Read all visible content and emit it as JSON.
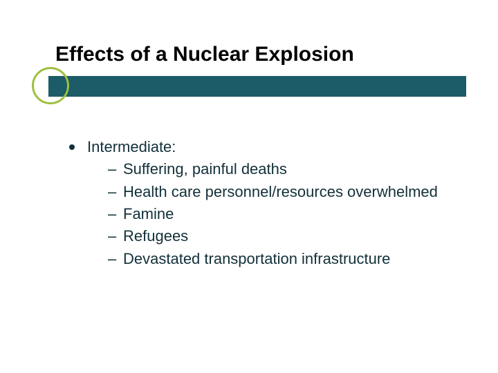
{
  "slide": {
    "title": "Effects of a Nuclear Explosion",
    "title_fontsize": 30,
    "title_color": "#000000",
    "underline_bar_color": "#1c5c68",
    "ring_border_color": "#9fbf3f",
    "body_text_color": "#12303a",
    "body_fontsize": 22,
    "background_color": "#ffffff",
    "bullet": {
      "label": "Intermediate:"
    },
    "subitems": [
      "Suffering, painful deaths",
      "Health care personnel/resources overwhelmed",
      "Famine",
      "Refugees",
      "Devastated transportation infrastructure"
    ]
  }
}
